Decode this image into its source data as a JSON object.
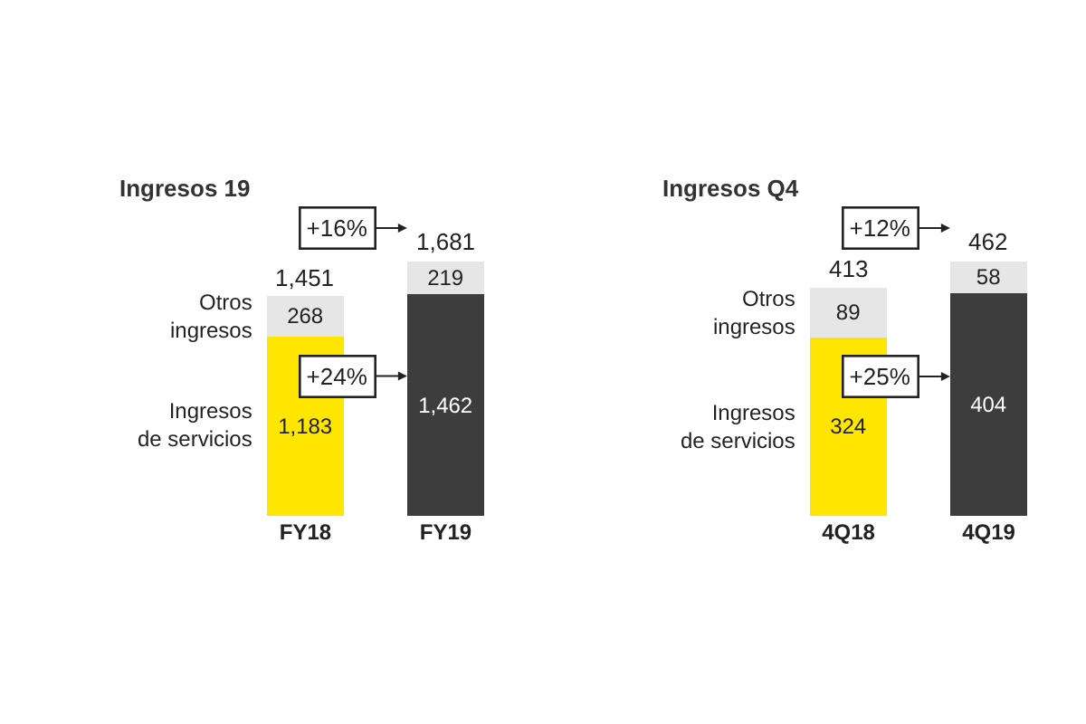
{
  "chart_data": [
    {
      "type": "bar",
      "title": "Ingresos 19",
      "categories": [
        "FY18",
        "FY19"
      ],
      "stacked": true,
      "tick_labels": "x",
      "legend": false,
      "series": [
        {
          "name": "Ingresos de servicios",
          "colors": [
            "#ffe600",
            "#3d3d3d"
          ],
          "values": [
            1183,
            1462
          ],
          "value_labels": [
            "1,183",
            "1,462"
          ]
        },
        {
          "name": "Otros ingresos",
          "color": "#e6e6e6",
          "values": [
            268,
            219
          ],
          "value_labels": [
            "268",
            "219"
          ]
        }
      ],
      "totals": [
        "1,451",
        "1,681"
      ],
      "annotations": [
        "+16%",
        "+24%"
      ]
    },
    {
      "type": "bar",
      "title": "Ingresos Q4",
      "categories": [
        "4Q18",
        "4Q19"
      ],
      "stacked": true,
      "data_labels": true,
      "tick_labels": "x",
      "legend": false,
      "series": [
        {
          "name": "Ingresos de servicios",
          "colors": [
            "#ffe600",
            "#3d3d3d"
          ],
          "values": [
            324,
            404
          ]
        },
        {
          "name": "Otros ingresos",
          "color": "#e6e6e6",
          "values": [
            89,
            58
          ]
        }
      ],
      "totals": [
        "413",
        "462"
      ],
      "annotations": [
        "+12%",
        "+25%"
      ]
    }
  ]
}
